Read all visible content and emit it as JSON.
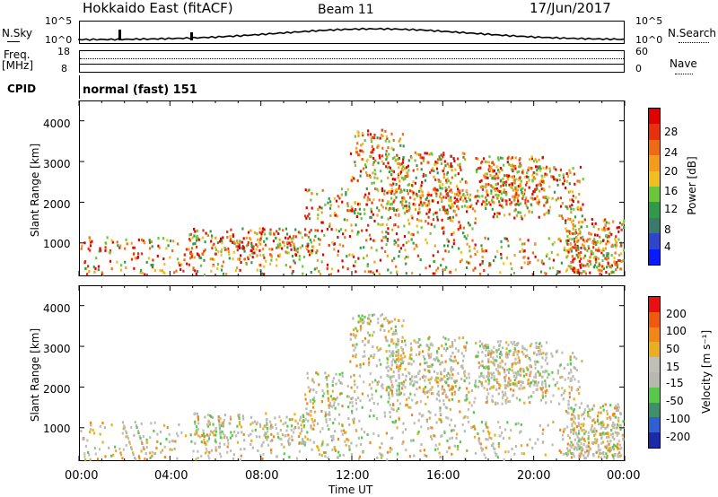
{
  "header": {
    "station": "Hokkaido East (fitACF)",
    "beam": "Beam 11",
    "date": "17/Jun/2017"
  },
  "noise_panel": {
    "left_label": "N.Sky",
    "right_label": "N.Search",
    "left_ticks": [
      "10^5",
      "10^0"
    ],
    "right_ticks": [
      "10^5",
      "10^0"
    ]
  },
  "freq_panel": {
    "left_label_line1": "Freq.",
    "left_label_line2": "[MHz]",
    "left_ticks": [
      "18",
      "8"
    ],
    "right_label": "Nave",
    "right_ticks": [
      "60",
      "0"
    ]
  },
  "cpid_panel": {
    "label": "CPID",
    "value": "normal (fast) 151"
  },
  "chart_data": [
    {
      "type": "heatmap",
      "parameter": "power",
      "ylabel": "Slant Range [km]",
      "ylim": [
        180,
        4500
      ],
      "yticks": [
        "1000",
        "2000",
        "3000",
        "4000"
      ],
      "xlim": [
        "00:00",
        "24:00"
      ],
      "colorbar_label": "Power [dB]",
      "colorbar_ticks": [
        "4",
        "8",
        "12",
        "16",
        "20",
        "24",
        "28"
      ],
      "colorbar_colors": [
        "#0a1aff",
        "#2f46c8",
        "#3a7a6a",
        "#2e9a4a",
        "#6cc63a",
        "#f0c020",
        "#f39b1a",
        "#ef6a14",
        "#e83010",
        "#e00000"
      ]
    },
    {
      "type": "heatmap",
      "parameter": "velocity",
      "ylabel": "Slant Range [km]",
      "ylim": [
        180,
        4500
      ],
      "yticks": [
        "1000",
        "2000",
        "3000",
        "4000"
      ],
      "xlim": [
        "00:00",
        "24:00"
      ],
      "colorbar_label": "Velocity [m s⁻¹]",
      "colorbar_ticks": [
        "200",
        "100",
        "50",
        "15",
        "-15",
        "-50",
        "-100",
        "-200"
      ],
      "colorbar_colors": [
        "#1a2aa8",
        "#2f5fd0",
        "#3f8f6a",
        "#58c84a",
        "#b8b8b0",
        "#c0c0b8",
        "#e8b020",
        "#f08818",
        "#f05a10",
        "#e81010"
      ]
    }
  ],
  "x_axis": {
    "ticks": [
      "00:00",
      "04:00",
      "08:00",
      "12:00",
      "16:00",
      "20:00",
      "00:00"
    ],
    "label": "Time UT"
  }
}
